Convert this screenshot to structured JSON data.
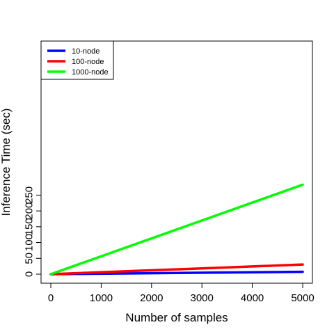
{
  "chart_data": {
    "type": "line",
    "title": "",
    "xlabel": "Number of samples",
    "ylabel": "Inference Time (sec)",
    "xlim": [
      0,
      5000
    ],
    "ylim": [
      0,
      290
    ],
    "x_ticks": [
      0,
      1000,
      2000,
      3000,
      4000,
      5000
    ],
    "y_ticks": [
      0,
      50,
      100,
      150,
      200,
      250
    ],
    "x_tick_labels": [
      "0",
      "1000",
      "2000",
      "3000",
      "4000",
      "5000"
    ],
    "y_tick_labels": [
      "0",
      "50",
      "100",
      "150",
      "200",
      "250"
    ],
    "grid": false,
    "legend_position": "top-left",
    "x": [
      0,
      5000
    ],
    "series": [
      {
        "name": "10-node",
        "color": "#0000ff",
        "values": [
          0,
          7.5
        ]
      },
      {
        "name": "100-node",
        "color": "#ff0000",
        "values": [
          0,
          30.5
        ]
      },
      {
        "name": "1000-node",
        "color": "#00ff00",
        "values": [
          0,
          283
        ]
      }
    ]
  }
}
